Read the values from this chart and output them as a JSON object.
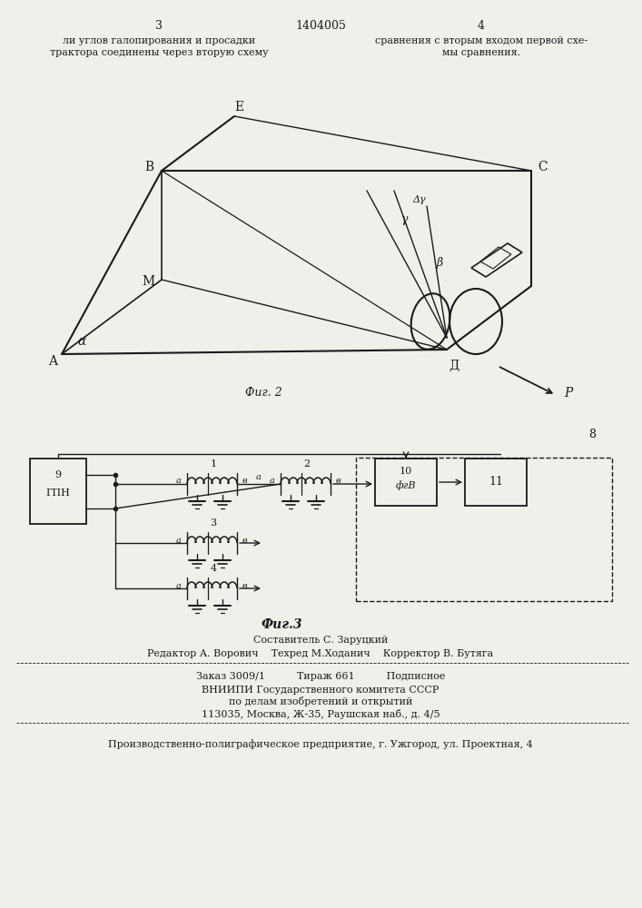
{
  "bg_color": "#f0f0eb",
  "text_color": "#1a1a1a",
  "page_number_left": "3",
  "page_title": "1404005",
  "page_number_right": "4",
  "top_text_left": [
    "ли углов галопирования и просадки",
    "трактора соединены через вторую схему"
  ],
  "top_text_right": [
    "сравнения с вторым входом первой схе-",
    "мы сравнения."
  ],
  "fig2_caption": "Фиг. 2",
  "fig3_caption": "Фиг.3",
  "bottom_author": "Составитель С. Заруцкий",
  "bottom_line1": "Редактор А. Ворович    Техред М.Ходанич    Корректор В. Бутяга",
  "bottom_line2": "Заказ 3009/1          Тираж 661          Подписное",
  "bottom_line3": "ВНИИПИ Государственного комитета СССР",
  "bottom_line4": "по делам изобретений и открытий",
  "bottom_line5": "113035, Москва, Ж-35, Раушская наб., д. 4/5",
  "bottom_line6": "Производственно-полиграфическое предприятие, г. Ужгород, ул. Проектная, 4"
}
